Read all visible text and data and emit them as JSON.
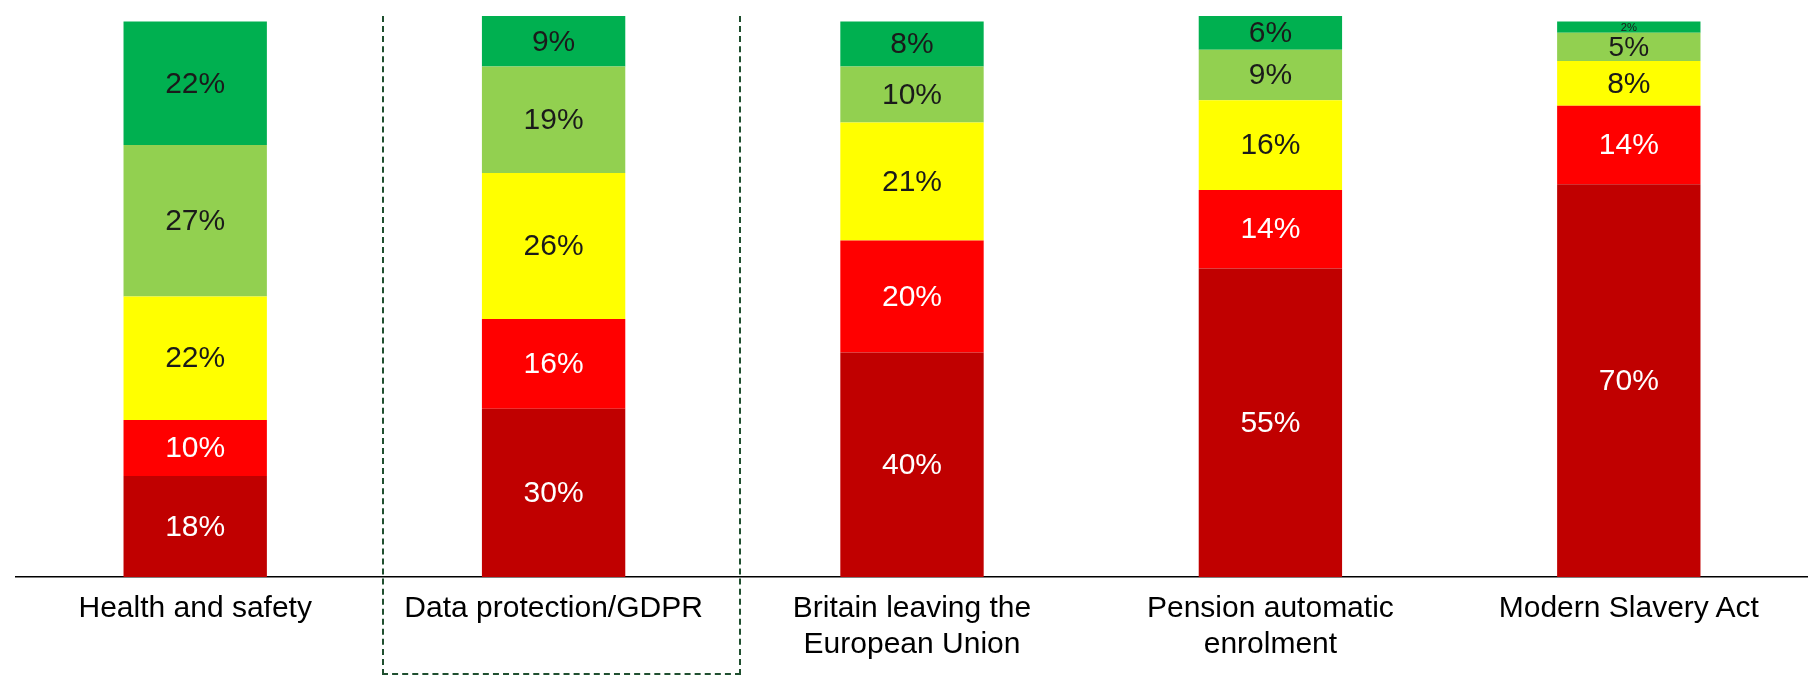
{
  "chart_data": {
    "type": "bar",
    "stacked": true,
    "relative": false,
    "grid": false,
    "legend": false,
    "categories": [
      "Health and safety",
      "Data protection/GDPR",
      "Britain leaving the European Union",
      "Pension automatic enrolment",
      "Modern Slavery Act"
    ],
    "series": [
      {
        "color": "#c00000",
        "values": [
          18,
          30,
          40,
          55,
          70
        ],
        "value_labels": [
          "18%",
          "30%",
          "40%",
          "55%",
          "70%"
        ]
      },
      {
        "color": "#ff0000",
        "values": [
          10,
          16,
          20,
          14,
          14
        ],
        "value_labels": [
          "10%",
          "16%",
          "20%",
          "14%",
          "14%"
        ]
      },
      {
        "color": "#ffff00",
        "values": [
          22,
          26,
          21,
          16,
          8
        ],
        "value_labels": [
          "22%",
          "26%",
          "21%",
          "16%",
          "8%"
        ]
      },
      {
        "color": "#92d050",
        "values": [
          27,
          19,
          10,
          9,
          5
        ],
        "value_labels": [
          "27%",
          "19%",
          "10%",
          "9%",
          "5%"
        ]
      },
      {
        "color": "#00b050",
        "values": [
          22,
          9,
          8,
          6,
          2
        ],
        "value_labels": [
          "22%",
          "9%",
          "8%",
          "6%",
          "2%"
        ]
      }
    ]
  }
}
